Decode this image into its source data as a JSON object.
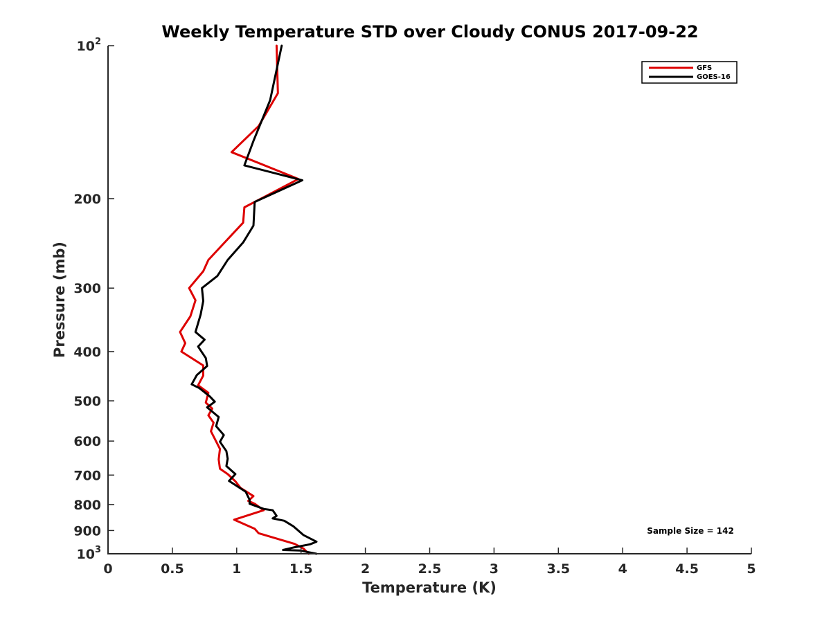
{
  "chart_data": {
    "type": "line",
    "title": "Weekly Temperature STD over Cloudy CONUS 2017-09-22",
    "xlabel": "Temperature (K)",
    "ylabel": "Pressure (mb)",
    "xlim": [
      0,
      5
    ],
    "ylim": [
      100,
      1000
    ],
    "yscale": "log",
    "y_reversed": true,
    "grid": false,
    "legend_position": "top-right",
    "x_ticks": [
      0,
      0.5,
      1,
      1.5,
      2,
      2.5,
      3,
      3.5,
      4,
      4.5,
      5
    ],
    "x_tick_labels": [
      "0",
      "0.5",
      "1",
      "1.5",
      "2",
      "2.5",
      "3",
      "3.5",
      "4",
      "4.5",
      "5"
    ],
    "y_ticks": [
      {
        "value": 100,
        "base": "10",
        "exp": "2"
      },
      {
        "value": 200,
        "label": "200"
      },
      {
        "value": 300,
        "label": "300"
      },
      {
        "value": 400,
        "label": "400"
      },
      {
        "value": 500,
        "label": "500"
      },
      {
        "value": 600,
        "label": "600"
      },
      {
        "value": 700,
        "label": "700"
      },
      {
        "value": 800,
        "label": "800"
      },
      {
        "value": 900,
        "label": "900"
      },
      {
        "value": 1000,
        "base": "10",
        "exp": "3"
      }
    ],
    "annotation": "Sample Size = 142",
    "series": [
      {
        "name": "GFS",
        "color": "#dd0000",
        "points": [
          [
            1.31,
            100
          ],
          [
            1.32,
            124
          ],
          [
            1.17,
            144
          ],
          [
            0.96,
            162
          ],
          [
            1.48,
            183
          ],
          [
            1.06,
            208
          ],
          [
            1.05,
            223
          ],
          [
            0.88,
            248
          ],
          [
            0.78,
            264
          ],
          [
            0.74,
            278
          ],
          [
            0.63,
            300
          ],
          [
            0.68,
            317
          ],
          [
            0.64,
            341
          ],
          [
            0.56,
            366
          ],
          [
            0.6,
            385
          ],
          [
            0.57,
            400
          ],
          [
            0.74,
            426
          ],
          [
            0.74,
            446
          ],
          [
            0.7,
            466
          ],
          [
            0.78,
            482
          ],
          [
            0.76,
            504
          ],
          [
            0.81,
            518
          ],
          [
            0.78,
            534
          ],
          [
            0.82,
            552
          ],
          [
            0.8,
            574
          ],
          [
            0.84,
            601
          ],
          [
            0.87,
            622
          ],
          [
            0.86,
            652
          ],
          [
            0.87,
            680
          ],
          [
            0.93,
            697
          ],
          [
            0.99,
            720
          ],
          [
            1.03,
            742
          ],
          [
            1.13,
            770
          ],
          [
            1.09,
            787
          ],
          [
            1.14,
            797
          ],
          [
            1.21,
            821
          ],
          [
            0.98,
            857
          ],
          [
            1.14,
            893
          ],
          [
            1.17,
            911
          ],
          [
            1.45,
            956
          ],
          [
            1.52,
            977
          ],
          [
            1.56,
            1000
          ]
        ]
      },
      {
        "name": "GOES-16",
        "color": "#000000",
        "points": [
          [
            1.35,
            100
          ],
          [
            1.26,
            128
          ],
          [
            1.13,
            154
          ],
          [
            1.06,
            172
          ],
          [
            1.51,
            184
          ],
          [
            1.14,
            203
          ],
          [
            1.13,
            226
          ],
          [
            1.05,
            244
          ],
          [
            0.93,
            264
          ],
          [
            0.85,
            284
          ],
          [
            0.73,
            300
          ],
          [
            0.74,
            318
          ],
          [
            0.72,
            338
          ],
          [
            0.68,
            366
          ],
          [
            0.75,
            379
          ],
          [
            0.7,
            391
          ],
          [
            0.76,
            412
          ],
          [
            0.77,
            427
          ],
          [
            0.69,
            445
          ],
          [
            0.65,
            464
          ],
          [
            0.71,
            472
          ],
          [
            0.79,
            490
          ],
          [
            0.83,
            502
          ],
          [
            0.77,
            515
          ],
          [
            0.86,
            538
          ],
          [
            0.84,
            561
          ],
          [
            0.9,
            584
          ],
          [
            0.87,
            602
          ],
          [
            0.92,
            628
          ],
          [
            0.93,
            650
          ],
          [
            0.92,
            672
          ],
          [
            0.99,
            697
          ],
          [
            0.94,
            719
          ],
          [
            1.07,
            755
          ],
          [
            1.1,
            783
          ],
          [
            1.1,
            797
          ],
          [
            1.21,
            816
          ],
          [
            1.28,
            821
          ],
          [
            1.31,
            842
          ],
          [
            1.28,
            852
          ],
          [
            1.37,
            861
          ],
          [
            1.44,
            883
          ],
          [
            1.52,
            919
          ],
          [
            1.62,
            947
          ],
          [
            1.57,
            958
          ],
          [
            1.45,
            971
          ],
          [
            1.36,
            983
          ],
          [
            1.49,
            985
          ],
          [
            1.62,
            1000
          ]
        ]
      }
    ]
  }
}
